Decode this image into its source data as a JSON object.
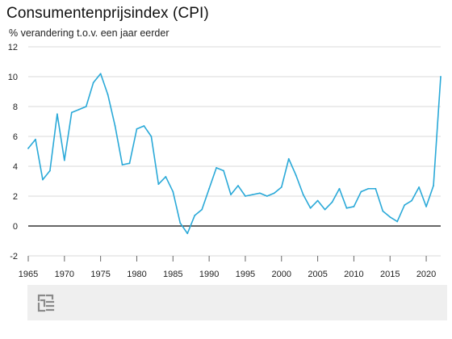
{
  "header": {
    "title": "Consumentenprijsindex (CPI)",
    "subtitle": "% verandering t.o.v. een jaar eerder"
  },
  "colors": {
    "line": "#2aa9d8",
    "zero_line": "#333333",
    "grid": "#d9d9d9",
    "footer_bg": "#efefef"
  },
  "footer": {
    "logo_icon": "cbs-logo-icon"
  },
  "chart_data": {
    "type": "line",
    "title": "Consumentenprijsindex (CPI)",
    "ylabel": "% verandering t.o.v. een jaar eerder",
    "xlabel": "",
    "xlim": [
      1965,
      2022
    ],
    "ylim": [
      -2,
      12
    ],
    "y_ticks": [
      -2,
      0,
      2,
      4,
      6,
      8,
      10,
      12
    ],
    "x_ticks": [
      1965,
      1970,
      1975,
      1980,
      1985,
      1990,
      1995,
      2000,
      2005,
      2010,
      2015,
      2020
    ],
    "grid": "horizontal",
    "x": [
      1965,
      1966,
      1967,
      1968,
      1969,
      1970,
      1971,
      1972,
      1973,
      1974,
      1975,
      1976,
      1977,
      1978,
      1979,
      1980,
      1981,
      1982,
      1983,
      1984,
      1985,
      1986,
      1987,
      1988,
      1989,
      1990,
      1991,
      1992,
      1993,
      1994,
      1995,
      1996,
      1997,
      1998,
      1999,
      2000,
      2001,
      2002,
      2003,
      2004,
      2005,
      2006,
      2007,
      2008,
      2009,
      2010,
      2011,
      2012,
      2013,
      2014,
      2015,
      2016,
      2017,
      2018,
      2019,
      2020,
      2021,
      2022
    ],
    "series": [
      {
        "values": [
          5.2,
          5.8,
          3.1,
          3.7,
          7.5,
          4.4,
          7.6,
          7.8,
          8.0,
          9.6,
          10.2,
          8.8,
          6.7,
          4.1,
          4.2,
          6.5,
          6.7,
          6.0,
          2.8,
          3.3,
          2.3,
          0.2,
          -0.5,
          0.7,
          1.1,
          2.5,
          3.9,
          3.7,
          2.1,
          2.7,
          2.0,
          2.1,
          2.2,
          2.0,
          2.2,
          2.6,
          4.5,
          3.4,
          2.1,
          1.2,
          1.7,
          1.1,
          1.6,
          2.5,
          1.2,
          1.3,
          2.3,
          2.5,
          2.5,
          1.0,
          0.6,
          0.3,
          1.4,
          1.7,
          2.6,
          1.3,
          2.7,
          10.0
        ]
      }
    ]
  }
}
